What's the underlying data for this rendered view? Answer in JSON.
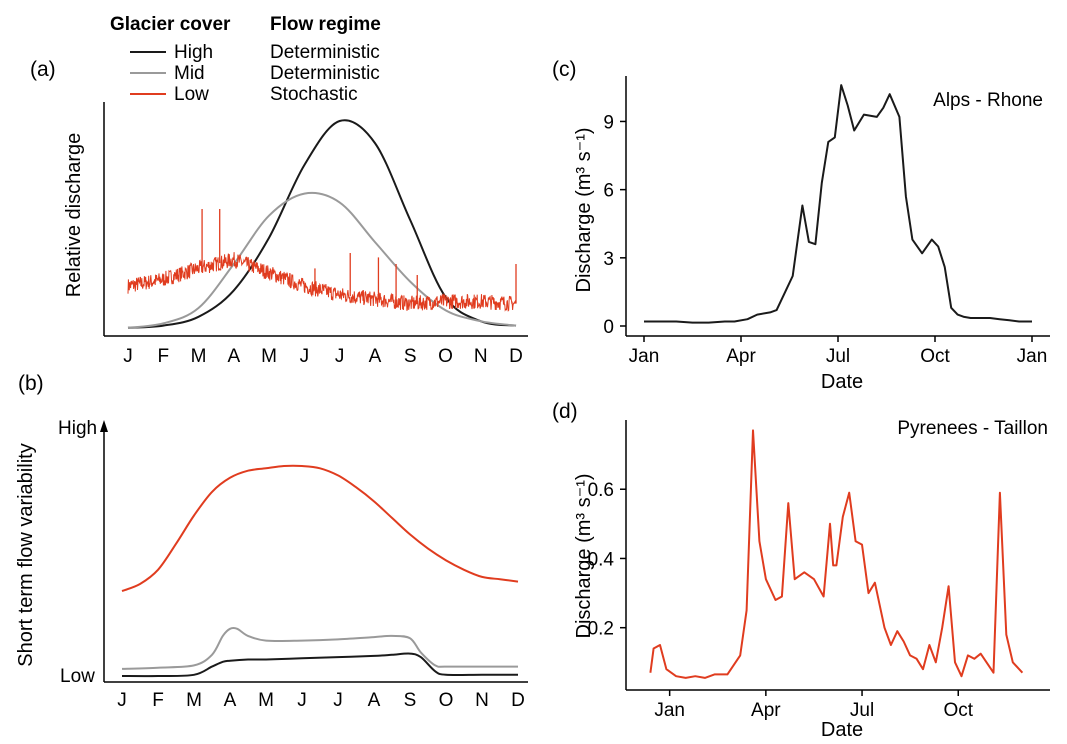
{
  "legend": {
    "col1_title": "Glacier cover",
    "col2_title": "Flow regime",
    "rows": [
      {
        "label": "High",
        "regime": "Deterministic",
        "color": "#1a1a1a"
      },
      {
        "label": "Mid",
        "regime": "Deterministic",
        "color": "#9a9a9a"
      },
      {
        "label": "Low",
        "regime": "Stochastic",
        "color": "#e03c1f"
      }
    ]
  },
  "panel_a": {
    "letter": "(a)"
  },
  "panel_b": {
    "letter": "(b)"
  },
  "panel_c": {
    "letter": "(c)"
  },
  "panel_d": {
    "letter": "(d)"
  },
  "chart_data": [
    {
      "id": "a",
      "type": "line",
      "ylabel": "Relative discharge",
      "xlabel": "",
      "categories": [
        "J",
        "F",
        "M",
        "A",
        "M",
        "J",
        "J",
        "A",
        "S",
        "O",
        "N",
        "D"
      ],
      "x_range": [
        0,
        11
      ],
      "ylim": [
        0,
        1
      ],
      "series": [
        {
          "name": "High",
          "color": "#1a1a1a",
          "x": [
            0,
            1,
            2,
            3,
            4,
            5,
            6,
            7,
            8,
            9,
            10,
            11
          ],
          "values": [
            0.01,
            0.02,
            0.06,
            0.18,
            0.42,
            0.75,
            0.95,
            0.85,
            0.5,
            0.15,
            0.04,
            0.02
          ]
        },
        {
          "name": "Mid",
          "color": "#9a9a9a",
          "x": [
            0,
            1,
            2,
            3,
            4,
            5,
            6,
            7,
            8,
            9,
            10,
            11
          ],
          "values": [
            0.01,
            0.03,
            0.1,
            0.3,
            0.52,
            0.62,
            0.58,
            0.4,
            0.22,
            0.09,
            0.04,
            0.02
          ]
        },
        {
          "name": "Low",
          "color": "#e03c1f",
          "x": [
            0,
            1,
            2,
            3,
            4,
            5,
            6,
            7,
            8,
            9,
            10,
            11
          ],
          "values": [
            0.2,
            0.23,
            0.28,
            0.32,
            0.26,
            0.2,
            0.16,
            0.14,
            0.12,
            0.13,
            0.13,
            0.12
          ],
          "noise": true,
          "spikes": [
            {
              "x": 2.1,
              "y": 0.55
            },
            {
              "x": 2.6,
              "y": 0.55
            },
            {
              "x": 5.3,
              "y": 0.28
            },
            {
              "x": 6.3,
              "y": 0.35
            },
            {
              "x": 7.1,
              "y": 0.33
            },
            {
              "x": 7.6,
              "y": 0.3
            },
            {
              "x": 8.2,
              "y": 0.25
            },
            {
              "x": 11,
              "y": 0.3
            }
          ]
        }
      ]
    },
    {
      "id": "b",
      "type": "line",
      "ylabel": "Short term flow variability",
      "xlabel": "",
      "categories": [
        "J",
        "F",
        "M",
        "A",
        "M",
        "J",
        "J",
        "A",
        "S",
        "O",
        "N",
        "D"
      ],
      "y_tick_labels": [
        "High",
        "Low"
      ],
      "x_range": [
        0,
        11
      ],
      "ylim": [
        0,
        1
      ],
      "series": [
        {
          "name": "Low",
          "color": "#e03c1f",
          "x": [
            0,
            0.5,
            1,
            1.5,
            2,
            2.5,
            3,
            3.5,
            4,
            4.5,
            5,
            5.5,
            6,
            6.5,
            7,
            7.5,
            8,
            8.5,
            9,
            9.5,
            10,
            10.5,
            11
          ],
          "values": [
            0.36,
            0.39,
            0.45,
            0.56,
            0.68,
            0.78,
            0.84,
            0.87,
            0.88,
            0.89,
            0.89,
            0.88,
            0.85,
            0.8,
            0.74,
            0.67,
            0.6,
            0.54,
            0.49,
            0.45,
            0.42,
            0.41,
            0.4
          ]
        },
        {
          "name": "Mid",
          "color": "#9a9a9a",
          "x": [
            0,
            1,
            2,
            2.5,
            2.8,
            3,
            3.2,
            3.5,
            4,
            5,
            6,
            7,
            7.5,
            8,
            8.3,
            8.7,
            9,
            10,
            11
          ],
          "values": [
            0.03,
            0.035,
            0.045,
            0.09,
            0.17,
            0.2,
            0.2,
            0.17,
            0.15,
            0.15,
            0.155,
            0.165,
            0.17,
            0.16,
            0.1,
            0.045,
            0.04,
            0.04,
            0.04
          ]
        },
        {
          "name": "High",
          "color": "#1a1a1a",
          "x": [
            0,
            1,
            2,
            2.5,
            2.8,
            3,
            3.5,
            4,
            5,
            6,
            7,
            7.5,
            8,
            8.3,
            8.7,
            9,
            10,
            11
          ],
          "values": [
            0.0,
            0.0,
            0.005,
            0.04,
            0.06,
            0.065,
            0.07,
            0.07,
            0.075,
            0.08,
            0.085,
            0.09,
            0.095,
            0.08,
            0.02,
            0.005,
            0.005,
            0.005
          ]
        }
      ]
    },
    {
      "id": "c",
      "type": "line",
      "title": "Alps - Rhone",
      "xlabel": "Date",
      "ylabel": "Discharge (m³ s⁻¹)",
      "x_unit": "month",
      "x_ticks": [
        0,
        3,
        6,
        9,
        12
      ],
      "x_tick_labels": [
        "Jan",
        "Apr",
        "Jul",
        "Oct",
        "Jan"
      ],
      "x_range": [
        0,
        12
      ],
      "ylim": [
        0,
        11
      ],
      "y_ticks": [
        0,
        3,
        6,
        9
      ],
      "series": [
        {
          "name": "",
          "color": "#1a1a1a",
          "x": [
            0,
            0.5,
            1,
            1.5,
            2,
            2.5,
            2.8,
            3.2,
            3.5,
            3.9,
            4.1,
            4.4,
            4.6,
            4.9,
            5.1,
            5.3,
            5.5,
            5.7,
            5.9,
            6.1,
            6.3,
            6.5,
            6.8,
            7.2,
            7.4,
            7.6,
            7.9,
            8.1,
            8.3,
            8.6,
            8.9,
            9.1,
            9.3,
            9.5,
            9.7,
            9.9,
            10.1,
            10.4,
            10.7,
            11,
            11.3,
            11.6,
            12
          ],
          "values": [
            0.2,
            0.2,
            0.2,
            0.15,
            0.15,
            0.2,
            0.2,
            0.3,
            0.5,
            0.6,
            0.7,
            1.6,
            2.2,
            5.3,
            3.7,
            3.6,
            6.3,
            8.1,
            8.3,
            10.6,
            9.7,
            8.6,
            9.3,
            9.2,
            9.6,
            10.2,
            9.2,
            5.7,
            3.8,
            3.2,
            3.8,
            3.5,
            2.6,
            0.8,
            0.5,
            0.4,
            0.35,
            0.35,
            0.35,
            0.3,
            0.25,
            0.2,
            0.2
          ]
        }
      ]
    },
    {
      "id": "d",
      "type": "line",
      "title": "Pyrenees - Taillon",
      "xlabel": "Date",
      "ylabel": "Discharge (m³ s⁻¹)",
      "x_unit": "month",
      "x_ticks": [
        0,
        3,
        6,
        9
      ],
      "x_tick_labels": [
        "Jan",
        "Apr",
        "Jul",
        "Oct"
      ],
      "x_range": [
        -0.8,
        11.3
      ],
      "ylim": [
        0.02,
        0.8
      ],
      "y_ticks": [
        0.2,
        0.4,
        0.6
      ],
      "series": [
        {
          "name": "",
          "color": "#e03c1f",
          "x": [
            -0.6,
            -0.5,
            -0.3,
            -0.1,
            0.2,
            0.5,
            0.8,
            1.1,
            1.4,
            1.8,
            2.2,
            2.4,
            2.6,
            2.8,
            3.0,
            3.3,
            3.5,
            3.7,
            3.9,
            4.2,
            4.5,
            4.8,
            5.0,
            5.1,
            5.2,
            5.4,
            5.6,
            5.8,
            6.0,
            6.2,
            6.4,
            6.7,
            6.9,
            7.1,
            7.3,
            7.5,
            7.7,
            7.9,
            8.1,
            8.3,
            8.5,
            8.7,
            8.9,
            9.1,
            9.3,
            9.5,
            9.7,
            10.1,
            10.3,
            10.5,
            10.7,
            11.0
          ],
          "values": [
            0.07,
            0.14,
            0.15,
            0.08,
            0.06,
            0.055,
            0.06,
            0.055,
            0.065,
            0.065,
            0.12,
            0.25,
            0.77,
            0.45,
            0.34,
            0.28,
            0.29,
            0.56,
            0.34,
            0.36,
            0.34,
            0.29,
            0.5,
            0.38,
            0.38,
            0.52,
            0.59,
            0.45,
            0.44,
            0.3,
            0.33,
            0.2,
            0.15,
            0.19,
            0.16,
            0.12,
            0.11,
            0.08,
            0.15,
            0.1,
            0.2,
            0.32,
            0.1,
            0.06,
            0.12,
            0.11,
            0.125,
            0.07,
            0.59,
            0.18,
            0.1,
            0.07
          ]
        }
      ]
    }
  ]
}
